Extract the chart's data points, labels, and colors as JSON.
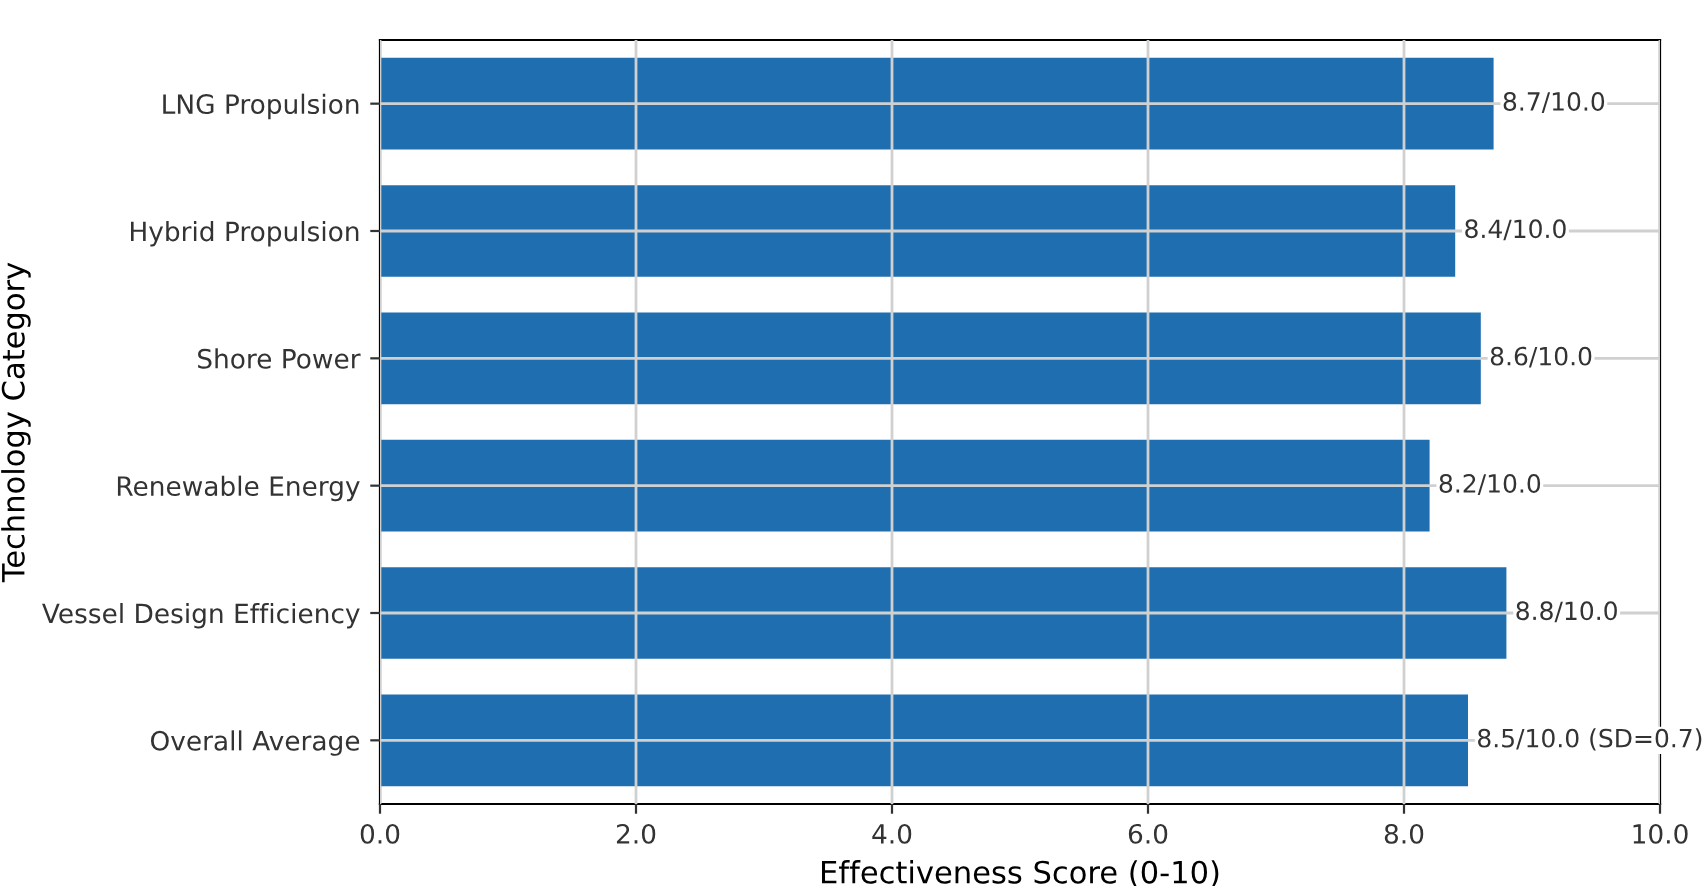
{
  "chart_data": {
    "type": "bar",
    "orientation": "horizontal",
    "xlabel": "Effectiveness Score (0-10)",
    "ylabel": "Technology Category",
    "categories": [
      "LNG Propulsion",
      "Hybrid Propulsion",
      "Shore Power",
      "Renewable Energy",
      "Vessel Design Efficiency",
      "Overall Average"
    ],
    "values": [
      8.7,
      8.4,
      8.6,
      8.2,
      8.8,
      8.5
    ],
    "value_labels": [
      "8.7/10.0",
      "8.4/10.0",
      "8.6/10.0",
      "8.2/10.0",
      "8.8/10.0",
      "8.5/10.0 (SD=0.7)"
    ],
    "color": "#1f6fb0",
    "xlim": [
      0,
      10
    ],
    "xticks": [
      {
        "value": 0,
        "label": "0.0"
      },
      {
        "value": 2,
        "label": "2.0"
      },
      {
        "value": 4,
        "label": "4.0"
      },
      {
        "value": 6,
        "label": "6.0"
      },
      {
        "value": 8,
        "label": "8.0"
      },
      {
        "value": 10,
        "label": "10.0"
      }
    ],
    "grid": true
  }
}
